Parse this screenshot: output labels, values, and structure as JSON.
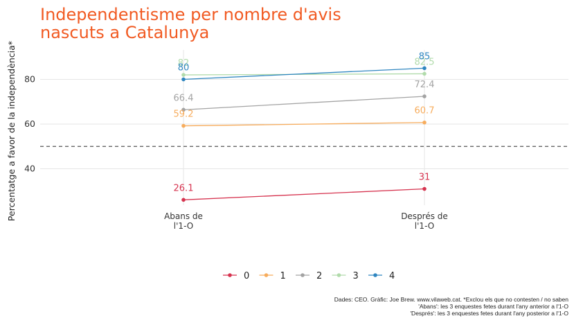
{
  "chart_data": {
    "type": "line",
    "title": "Independentisme per nombre d'avis nascuts a Catalunya",
    "xlabel": "",
    "ylabel": "Percentatge a favor de la independència*",
    "categories": [
      "Abans de\nl'1-O",
      "Després de\nl'1-O"
    ],
    "ylim": [
      20,
      93
    ],
    "yticks": [
      40,
      60,
      80
    ],
    "reference_line": 50,
    "grid": true,
    "legend_position": "bottom",
    "series": [
      {
        "name": "0",
        "values": [
          26.1,
          31
        ],
        "color": "#d6334f"
      },
      {
        "name": "1",
        "values": [
          59.2,
          60.7
        ],
        "color": "#f7ac5c"
      },
      {
        "name": "2",
        "values": [
          66.4,
          72.4
        ],
        "color": "#a3a3a3"
      },
      {
        "name": "3",
        "values": [
          82,
          82.5
        ],
        "color": "#b1dbab"
      },
      {
        "name": "4",
        "values": [
          80,
          85
        ],
        "color": "#2f86c0"
      }
    ]
  },
  "caption": {
    "line1": "Dades: CEO. Gràfic: Joe Brew. www.vilaweb.cat. *Exclou els que no contesten / no saben",
    "line2": "'Abans': les 3 enquestes fetes durant l'any anterior a l'1-O",
    "line3": "'Després': les 3 enquestes fetes durant l'any posterior a l'1-O"
  }
}
